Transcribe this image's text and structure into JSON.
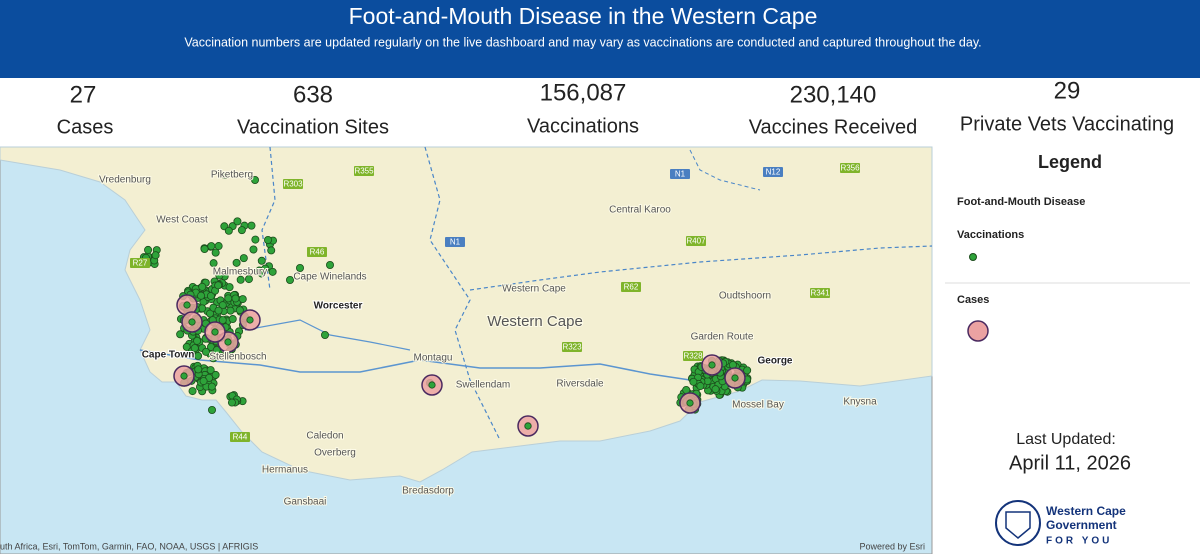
{
  "header": {
    "title": "Foot-and-Mouth Disease in the Western Cape",
    "subtitle": "Vaccination numbers are updated regularly on the live dashboard and may vary as vaccinations are conducted and captured throughout the day."
  },
  "stats": [
    {
      "value": "27",
      "label": "Cases"
    },
    {
      "value": "638",
      "label": "Vaccination Sites"
    },
    {
      "value": "156,087",
      "label": "Vaccinations"
    },
    {
      "value": "230,140",
      "label": "Vaccines Received"
    },
    {
      "value": "29",
      "label": "Private Vets Vaccinating"
    }
  ],
  "map": {
    "places": [
      "Vredenburg",
      "Piketberg",
      "West Coast",
      "Malmesbury",
      "Cape Winelands",
      "Worcester",
      "Montagu",
      "Western Cape",
      "Western Cape",
      "Central Karoo",
      "Oudtshoorn",
      "Garden Route",
      "George",
      "Knysna",
      "Riversdale",
      "Swellendam",
      "Mossel Bay",
      "Cape Town",
      "Stellenbosch",
      "Caledon",
      "Overberg",
      "Hermanus",
      "Gansbaai",
      "Bredasdorp"
    ],
    "roads": [
      "R303",
      "R355",
      "N1",
      "N12",
      "R356",
      "R407",
      "N1",
      "R46",
      "R27",
      "R62",
      "R341",
      "R323",
      "R328",
      "R44"
    ],
    "attribution": "uth Africa, Esri, TomTom, Garmin, FAO, NOAA, USGS | AFRIGIS",
    "powered_by": "Powered by Esri"
  },
  "legend": {
    "title": "Legend",
    "layer": "Foot-and-Mouth Disease",
    "items": [
      "Vaccinations",
      "Cases"
    ]
  },
  "last_updated": {
    "label": "Last Updated:",
    "date": "April 11, 2026"
  },
  "logo": {
    "name": [
      "Western Cape",
      "Government"
    ],
    "tagline": "FOR YOU"
  }
}
